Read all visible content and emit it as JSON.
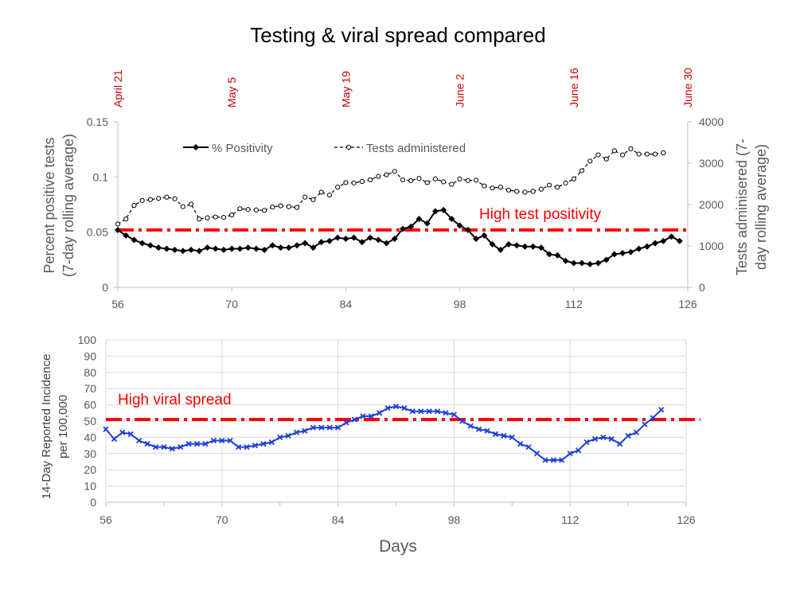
{
  "title": "Testing & viral spread compared",
  "colors": {
    "positivity": "#000000",
    "tests": "#000000",
    "incidence": "#1f3fd6",
    "threshold": "#ff0000",
    "date_labels": "#cc0000",
    "axis_text": "#595959",
    "grid": "#d9d9d9"
  },
  "chart_data": [
    {
      "type": "line",
      "title": "",
      "date_axis": {
        "position": "top",
        "labels": [
          "April 21",
          "May 5",
          "May 19",
          "June 2",
          "June 16",
          "June 30"
        ],
        "ticks": [
          56,
          70,
          84,
          98,
          112,
          126
        ]
      },
      "x_ticks": [
        56,
        70,
        84,
        98,
        112,
        126
      ],
      "xlim": [
        56,
        126
      ],
      "ylabel_left": "Percent positive tests (7-day rolling average)",
      "ylabel_left_lines": [
        "Percent positive tests",
        "(7-day rolling average)"
      ],
      "ylim_left": [
        0,
        0.15
      ],
      "yticks_left": [
        "0",
        "0.05",
        "0.1",
        "0.15"
      ],
      "ylabel_right": "Tests adminisered (7-day rolling average)",
      "ylabel_right_lines": [
        "Tests adminisered (7-",
        "day rolling average)"
      ],
      "ylim_right": [
        0,
        4000
      ],
      "yticks_right": [
        "0",
        "1000",
        "2000",
        "3000",
        "4000"
      ],
      "grid": false,
      "legend_position": "top-left",
      "annotation": {
        "text": "High test positivity",
        "y": 0.052
      },
      "series": [
        {
          "name": "% Positivity",
          "axis": "left",
          "marker": "diamond",
          "x": [
            56,
            57,
            58,
            59,
            60,
            61,
            62,
            63,
            64,
            65,
            66,
            67,
            68,
            69,
            70,
            71,
            72,
            73,
            74,
            75,
            76,
            77,
            78,
            79,
            80,
            81,
            82,
            83,
            84,
            85,
            86,
            87,
            88,
            89,
            90,
            91,
            92,
            93,
            94,
            95,
            96,
            97,
            98,
            99,
            100,
            101,
            102,
            103,
            104,
            105,
            106,
            107,
            108,
            109,
            110,
            111,
            112,
            113,
            114,
            115,
            116,
            117,
            118,
            119,
            120,
            121,
            122,
            123,
            124,
            125,
            126
          ],
          "values": [
            0.052,
            0.047,
            0.043,
            0.04,
            0.038,
            0.036,
            0.035,
            0.034,
            0.033,
            0.034,
            0.033,
            0.036,
            0.035,
            0.034,
            0.035,
            0.035,
            0.036,
            0.035,
            0.034,
            0.038,
            0.036,
            0.036,
            0.038,
            0.04,
            0.036,
            0.041,
            0.042,
            0.045,
            0.044,
            0.045,
            0.041,
            0.045,
            0.043,
            0.04,
            0.044,
            0.053,
            0.055,
            0.062,
            0.058,
            0.069,
            0.07,
            0.062,
            0.056,
            0.052,
            0.044,
            0.047,
            0.039,
            0.034,
            0.039,
            0.038,
            0.037,
            0.037,
            0.036,
            0.03,
            0.029,
            0.024,
            0.022,
            0.022,
            0.021,
            0.022,
            0.025,
            0.03,
            0.031,
            0.032,
            0.035,
            0.037,
            0.04,
            0.042,
            0.046,
            0.042,
            null
          ]
        },
        {
          "name": "Tests administered",
          "axis": "right",
          "marker": "circle-open",
          "x": [
            56,
            57,
            58,
            59,
            60,
            61,
            62,
            63,
            64,
            65,
            66,
            67,
            68,
            69,
            70,
            71,
            72,
            73,
            74,
            75,
            76,
            77,
            78,
            79,
            80,
            81,
            82,
            83,
            84,
            85,
            86,
            87,
            88,
            89,
            90,
            91,
            92,
            93,
            94,
            95,
            96,
            97,
            98,
            99,
            100,
            101,
            102,
            103,
            104,
            105,
            106,
            107,
            108,
            109,
            110,
            111,
            112,
            113,
            114,
            115,
            116,
            117,
            118,
            119,
            120,
            121,
            122,
            123,
            124,
            125,
            126
          ],
          "values": [
            1530,
            1650,
            1980,
            2100,
            2120,
            2150,
            2180,
            2140,
            1950,
            2010,
            1650,
            1680,
            1700,
            1690,
            1750,
            1900,
            1880,
            1870,
            1860,
            1940,
            1970,
            1950,
            1930,
            2180,
            2120,
            2300,
            2230,
            2420,
            2530,
            2520,
            2560,
            2600,
            2680,
            2720,
            2800,
            2600,
            2580,
            2630,
            2530,
            2620,
            2550,
            2490,
            2620,
            2580,
            2590,
            2450,
            2400,
            2420,
            2350,
            2320,
            2300,
            2320,
            2370,
            2470,
            2420,
            2520,
            2620,
            2820,
            3050,
            3200,
            3100,
            3300,
            3200,
            3350,
            3220,
            3220,
            3220,
            3250,
            null,
            null,
            null
          ]
        }
      ]
    },
    {
      "type": "line",
      "title": "",
      "xlabel": "Days",
      "x_ticks": [
        56,
        70,
        84,
        98,
        112,
        126
      ],
      "xlim": [
        56,
        126
      ],
      "ylabel": "14-Day Reported Incidence per 100,000",
      "ylabel_lines": [
        "14-Day Reported Incidence",
        "per 100,000"
      ],
      "ylim": [
        0,
        100
      ],
      "yticks": [
        "0",
        "10",
        "20",
        "30",
        "40",
        "50",
        "60",
        "70",
        "80",
        "90",
        "100"
      ],
      "grid": true,
      "annotation": {
        "text": "High viral spread",
        "y": 51
      },
      "series": [
        {
          "name": "",
          "marker": "x",
          "x": [
            56,
            57,
            58,
            59,
            60,
            61,
            62,
            63,
            64,
            65,
            66,
            67,
            68,
            69,
            70,
            71,
            72,
            73,
            74,
            75,
            76,
            77,
            78,
            79,
            80,
            81,
            82,
            83,
            84,
            85,
            86,
            87,
            88,
            89,
            90,
            91,
            92,
            93,
            94,
            95,
            96,
            97,
            98,
            99,
            100,
            101,
            102,
            103,
            104,
            105,
            106,
            107,
            108,
            109,
            110,
            111,
            112,
            113,
            114,
            115,
            116,
            117,
            118,
            119,
            120,
            121,
            122,
            123,
            124,
            125,
            126
          ],
          "values": [
            45,
            39,
            43,
            42,
            38,
            36,
            34,
            34,
            33,
            34,
            36,
            36,
            36,
            38,
            38,
            38,
            34,
            34,
            35,
            36,
            37,
            40,
            41,
            43,
            44,
            46,
            46,
            46,
            46,
            49,
            51,
            53,
            53,
            55,
            58,
            59,
            58,
            56,
            56,
            56,
            56,
            55,
            54,
            50,
            47,
            45,
            44,
            42,
            41,
            40,
            36,
            34,
            30,
            26,
            26,
            26,
            30,
            32,
            37,
            39,
            40,
            39,
            36,
            41,
            43,
            48,
            52,
            57,
            null,
            null,
            null
          ]
        }
      ]
    }
  ]
}
